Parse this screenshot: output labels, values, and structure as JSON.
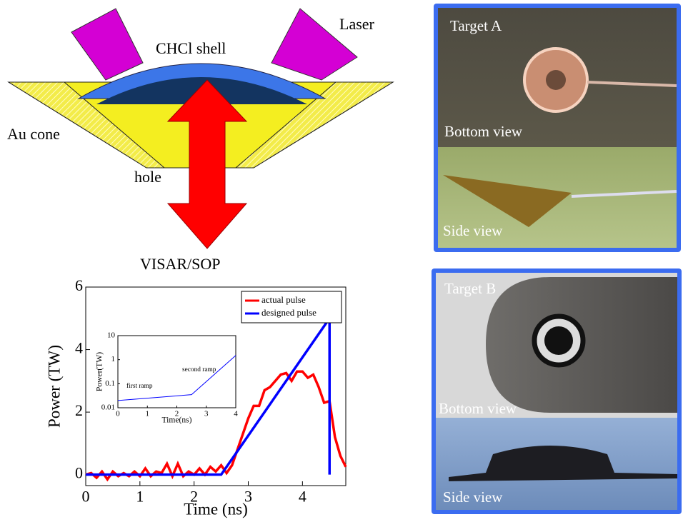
{
  "diagram": {
    "laser_label": "Laser",
    "shell_label": "CHCl shell",
    "cone_label": "Au cone",
    "hole_label": "hole",
    "diagnostic_label": "VISAR/SOP"
  },
  "chart_data": [
    {
      "type": "line",
      "xlabel": "Time (ns)",
      "ylabel": "Power (TW)",
      "xlim": [
        0,
        4.8
      ],
      "ylim": [
        -0.35,
        6
      ],
      "xticks": [
        0,
        1,
        2,
        3,
        4
      ],
      "yticks": [
        0,
        2,
        4,
        6
      ],
      "legend": "upper right",
      "series": [
        {
          "name": "actual pulse",
          "color": "#ff0000",
          "x": [
            0,
            0.1,
            0.2,
            0.3,
            0.4,
            0.5,
            0.6,
            0.7,
            0.8,
            0.9,
            1.0,
            1.1,
            1.2,
            1.3,
            1.4,
            1.5,
            1.6,
            1.7,
            1.8,
            1.9,
            2.0,
            2.1,
            2.2,
            2.3,
            2.4,
            2.5,
            2.6,
            2.7,
            2.8,
            2.9,
            3.0,
            3.1,
            3.2,
            3.3,
            3.4,
            3.5,
            3.6,
            3.7,
            3.8,
            3.9,
            4.0,
            4.1,
            4.2,
            4.3,
            4.4,
            4.5,
            4.6,
            4.7,
            4.8
          ],
          "values": [
            0,
            0.05,
            -0.1,
            0.1,
            -0.15,
            0.1,
            -0.05,
            0.05,
            -0.05,
            0.1,
            -0.05,
            0.2,
            -0.05,
            0.1,
            0.05,
            0.35,
            -0.05,
            0.35,
            -0.05,
            0.1,
            0,
            0.2,
            0,
            0.25,
            0.1,
            0.3,
            0.05,
            0.3,
            0.8,
            1.3,
            1.8,
            2.2,
            2.2,
            2.7,
            2.8,
            3.0,
            3.2,
            3.25,
            3.0,
            3.3,
            3.3,
            3.1,
            3.2,
            2.8,
            2.3,
            2.35,
            1.2,
            0.6,
            0.25
          ]
        },
        {
          "name": "designed pulse",
          "color": "#0000ff",
          "x": [
            0,
            2.5,
            4.5,
            4.5
          ],
          "values": [
            0,
            0,
            5,
            0
          ]
        }
      ]
    },
    {
      "type": "line",
      "xlabel": "Time(ns)",
      "ylabel": "Power(TW)",
      "log_y": true,
      "xlim": [
        0,
        4
      ],
      "ylim": [
        0.01,
        10
      ],
      "xticks": [
        0,
        1,
        2,
        3,
        4
      ],
      "yticks": [
        0.01,
        0.1,
        1,
        10
      ],
      "annotations": [
        "first ramp",
        "second ramp"
      ],
      "series": [
        {
          "color": "#0000ff",
          "x": [
            0,
            2.5,
            4
          ],
          "values": [
            0.02,
            0.035,
            1.5
          ]
        }
      ]
    }
  ],
  "photos": {
    "target_a": {
      "title": "Target A",
      "bottom_label": "Bottom view",
      "side_label": "Side view"
    },
    "target_b": {
      "title": "Target B",
      "bottom_label": "Bottom view",
      "side_label": "Side view"
    }
  }
}
